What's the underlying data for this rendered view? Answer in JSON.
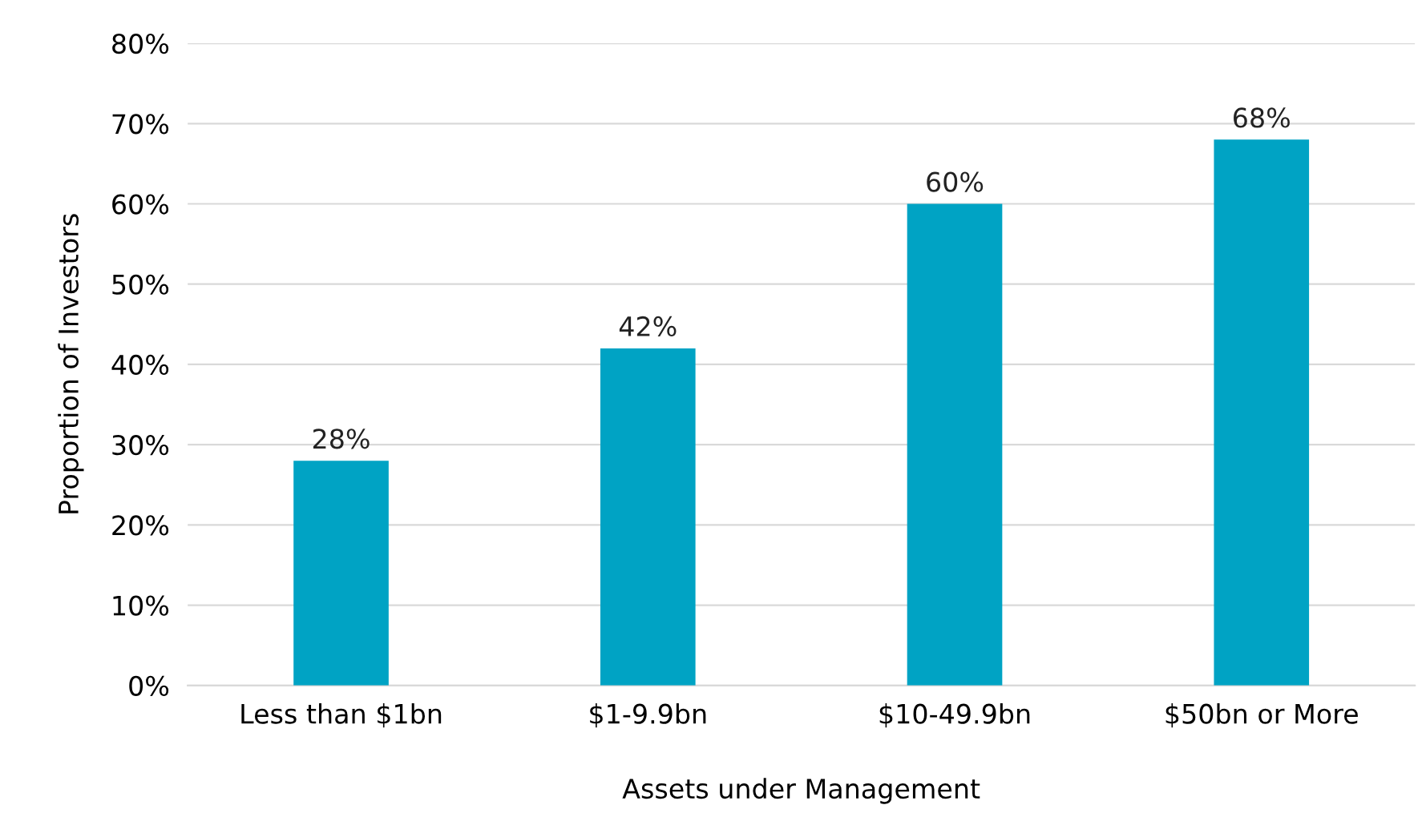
{
  "chart_data": {
    "type": "bar",
    "xlabel": "Assets under Management",
    "ylabel": "Proportion of Investors",
    "categories": [
      "Less than $1bn",
      "$1-9.9bn",
      "$10-49.9bn",
      "$50bn or More"
    ],
    "values": [
      28,
      42,
      60,
      68
    ],
    "value_labels": [
      "28%",
      "42%",
      "60%",
      "68%"
    ],
    "color": "#00a3c4",
    "ylim": [
      0,
      80
    ],
    "yticks": [
      {
        "value": 0,
        "label": "0%"
      },
      {
        "value": 10,
        "label": "10%"
      },
      {
        "value": 20,
        "label": "20%"
      },
      {
        "value": 30,
        "label": "30%"
      },
      {
        "value": 40,
        "label": "40%"
      },
      {
        "value": 50,
        "label": "50%"
      },
      {
        "value": 60,
        "label": "60%"
      },
      {
        "value": 70,
        "label": "70%"
      },
      {
        "value": 80,
        "label": "80%"
      }
    ],
    "grid": "y"
  }
}
